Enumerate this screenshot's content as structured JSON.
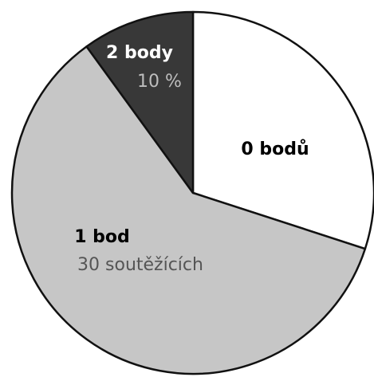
{
  "chart_data": {
    "type": "pie",
    "categories": [
      "0 bodů",
      "1 bod",
      "2 body"
    ],
    "values": [
      30,
      60,
      10
    ],
    "value_labels": [
      null,
      "30 soutěžících",
      "10 %"
    ],
    "colors": [
      "#ffffff",
      "#c6c6c6",
      "#383838"
    ]
  }
}
